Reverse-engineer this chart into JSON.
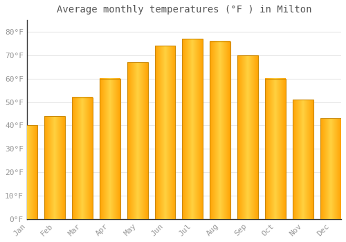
{
  "title": "Average monthly temperatures (°F ) in Milton",
  "months": [
    "Jan",
    "Feb",
    "Mar",
    "Apr",
    "May",
    "Jun",
    "Jul",
    "Aug",
    "Sep",
    "Oct",
    "Nov",
    "Dec"
  ],
  "values": [
    40,
    44,
    52,
    60,
    67,
    74,
    77,
    76,
    70,
    60,
    51,
    43
  ],
  "bar_color_light": "#FFD060",
  "bar_color_dark": "#FFA000",
  "ylim": [
    0,
    85
  ],
  "yticks": [
    0,
    10,
    20,
    30,
    40,
    50,
    60,
    70,
    80
  ],
  "ytick_labels": [
    "0°F",
    "10°F",
    "20°F",
    "30°F",
    "40°F",
    "50°F",
    "60°F",
    "70°F",
    "80°F"
  ],
  "background_color": "#ffffff",
  "grid_color": "#e8e8e8",
  "title_fontsize": 10,
  "tick_fontsize": 8,
  "bar_edge_color": "#CC8800",
  "spine_color": "#333333"
}
